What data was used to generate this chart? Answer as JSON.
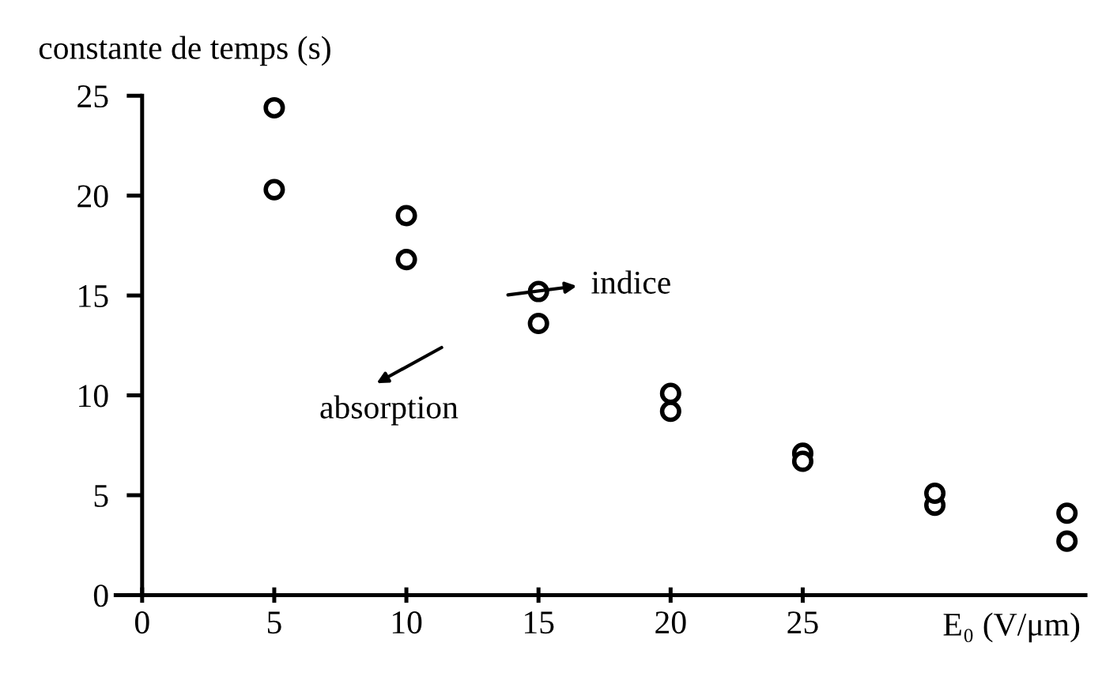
{
  "chart_data": {
    "type": "scatter",
    "ylabel": "constante de temps (s)",
    "xlabel": "E₀ (V/μm)",
    "x": [
      5,
      10,
      15,
      20,
      25,
      30,
      35
    ],
    "series": [
      {
        "color": "#000000",
        "marker": "circle",
        "values": [
          24.4,
          19.0,
          15.2,
          10.1,
          7.1,
          4.5,
          2.7
        ]
      },
      {
        "color": "#000000",
        "marker": "circle",
        "values": [
          20.3,
          16.8,
          13.6,
          9.2,
          6.7,
          5.1,
          4.1
        ]
      }
    ],
    "annotations": [
      "indice",
      "absorption"
    ],
    "xlim": [
      -1,
      35.7
    ],
    "ylim": [
      0,
      25
    ],
    "xticks": [
      0,
      5,
      10,
      15,
      20,
      25
    ],
    "yticks": [
      0,
      5,
      10,
      15,
      20,
      25
    ],
    "grid": false,
    "legend": false
  }
}
